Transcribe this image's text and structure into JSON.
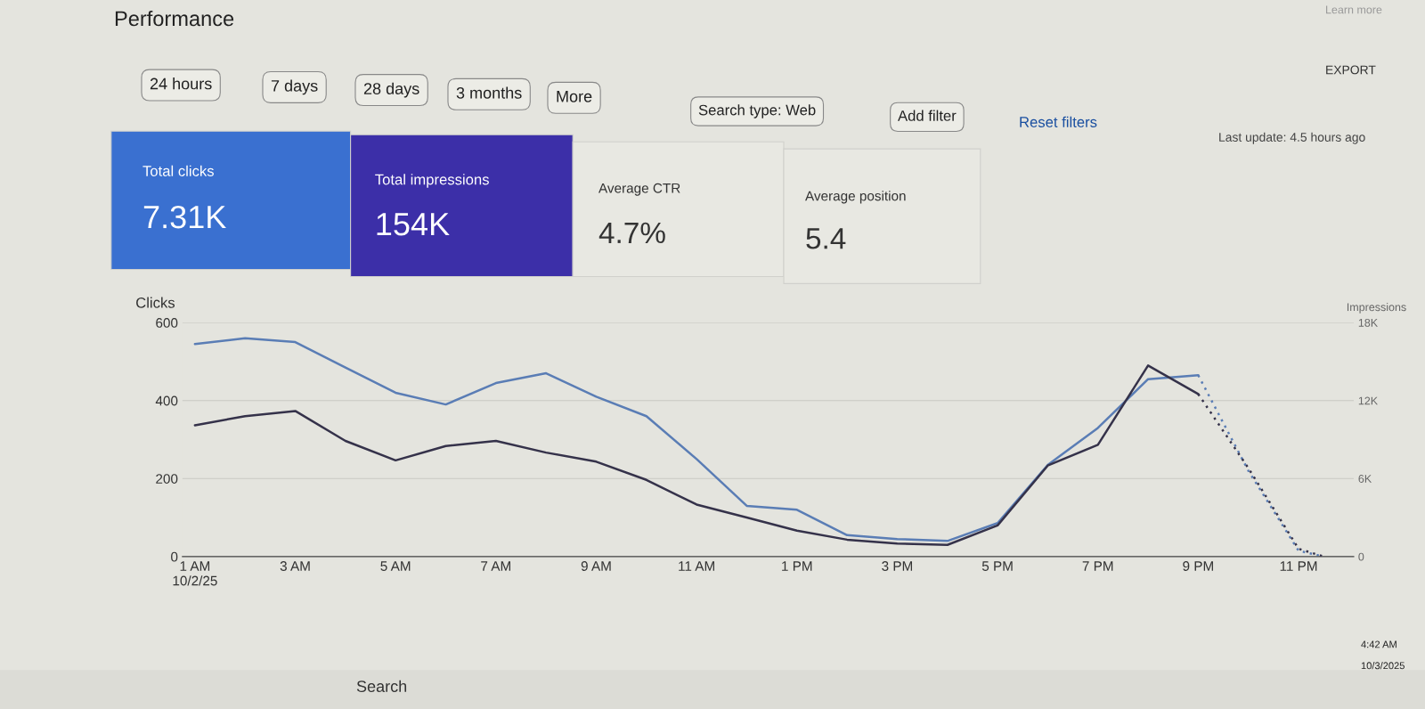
{
  "chart_data": [
    {
      "type": "other",
      "title": "Performance",
      "colors": [
        "#3a70d0",
        "#3c2fa8",
        "#e8e8e2",
        "#e8e8e2"
      ],
      "annotations": [
        "Learn more",
        "24 hours",
        "7 days",
        "28 days",
        "3 months",
        "More",
        "Search type: Web",
        "Add filter",
        "Reset filters",
        "EXPORT",
        "Last update: 4.5 hours ago",
        "Total clicks",
        "7.31K",
        "Total impressions",
        "154K",
        "Average CTR",
        "4.7%",
        "Average position",
        "5.4",
        "Search",
        "4:42 AM",
        "10/3/2025"
      ]
    },
    {
      "type": "line",
      "ylabel": "Clicks",
      "y2label": "Impressions",
      "grid": "y",
      "marker": "none",
      "xlim": [
        "2025-10-02T00:45",
        "2025-10-03T00:06"
      ],
      "xticks": [
        {
          "value": "2025-10-02T01:00",
          "label": "1 AM\n10/2/25"
        },
        {
          "value": "2025-10-02T03:00",
          "label": "3 AM"
        },
        {
          "value": "2025-10-02T05:00",
          "label": "5 AM"
        },
        {
          "value": "2025-10-02T07:00",
          "label": "7 AM"
        },
        {
          "value": "2025-10-02T09:00",
          "label": "9 AM"
        },
        {
          "value": "2025-10-02T11:00",
          "label": "11 AM"
        },
        {
          "value": "2025-10-02T13:00",
          "label": "1 PM"
        },
        {
          "value": "2025-10-02T15:00",
          "label": "3 PM"
        },
        {
          "value": "2025-10-02T17:00",
          "label": "5 PM"
        },
        {
          "value": "2025-10-02T19:00",
          "label": "7 PM"
        },
        {
          "value": "2025-10-02T21:00",
          "label": "9 PM"
        },
        {
          "value": "2025-10-02T23:00",
          "label": "11 PM"
        }
      ],
      "ylim": [
        0,
        600
      ],
      "yticks": [
        0,
        200,
        400,
        600
      ],
      "y2lim": [
        0,
        18000
      ],
      "y2ticks": [
        0,
        {
          "value": 6000,
          "label": "6K"
        },
        {
          "value": 12000,
          "label": "12K"
        },
        {
          "value": 18000,
          "label": "18K"
        }
      ],
      "series": [
        {
          "color": "#5a7db5",
          "line_style": "solid",
          "x": [
            "2025-10-02T01:00",
            "2025-10-02T02:00",
            "2025-10-02T03:00",
            "2025-10-02T04:00",
            "2025-10-02T05:00",
            "2025-10-02T06:00",
            "2025-10-02T07:00",
            "2025-10-02T08:00",
            "2025-10-02T09:00",
            "2025-10-02T10:00",
            "2025-10-02T11:00",
            "2025-10-02T12:00",
            "2025-10-02T13:00",
            "2025-10-02T14:00",
            "2025-10-02T15:00",
            "2025-10-02T16:00",
            "2025-10-02T17:00",
            "2025-10-02T18:00",
            "2025-10-02T19:00",
            "2025-10-02T20:00",
            "2025-10-02T21:00"
          ],
          "values": [
            545,
            560,
            550,
            485,
            420,
            390,
            445,
            470,
            410,
            360,
            250,
            130,
            120,
            55,
            45,
            40,
            86,
            235,
            330,
            455,
            465
          ]
        },
        {
          "color": "#5a7db5",
          "line_style": "dotted",
          "x": [
            "2025-10-02T21:00",
            "2025-10-02T22:00",
            "2025-10-02T23:00",
            "2025-10-02T23:30"
          ],
          "values": [
            465,
            220,
            15,
            0
          ]
        },
        {
          "color": "#35324a",
          "axis": "y2",
          "line_style": "solid",
          "x": [
            "2025-10-02T01:00",
            "2025-10-02T02:00",
            "2025-10-02T03:00",
            "2025-10-02T04:00",
            "2025-10-02T05:00",
            "2025-10-02T06:00",
            "2025-10-02T07:00",
            "2025-10-02T08:00",
            "2025-10-02T09:00",
            "2025-10-02T10:00",
            "2025-10-02T11:00",
            "2025-10-02T12:00",
            "2025-10-02T13:00",
            "2025-10-02T14:00",
            "2025-10-02T15:00",
            "2025-10-02T16:00",
            "2025-10-02T17:00",
            "2025-10-02T18:00",
            "2025-10-02T19:00",
            "2025-10-02T20:00",
            "2025-10-02T21:00"
          ],
          "values": [
            10100,
            10800,
            11200,
            8900,
            7400,
            8500,
            8900,
            8000,
            7300,
            5900,
            4000,
            3000,
            2000,
            1300,
            1000,
            900,
            2400,
            7000,
            8600,
            14700,
            12500
          ]
        },
        {
          "color": "#35324a",
          "axis": "y2",
          "line_style": "dotted",
          "x": [
            "2025-10-02T21:00",
            "2025-10-02T22:00",
            "2025-10-02T23:00",
            "2025-10-02T23:30"
          ],
          "values": [
            12500,
            6800,
            600,
            0
          ]
        }
      ]
    }
  ]
}
